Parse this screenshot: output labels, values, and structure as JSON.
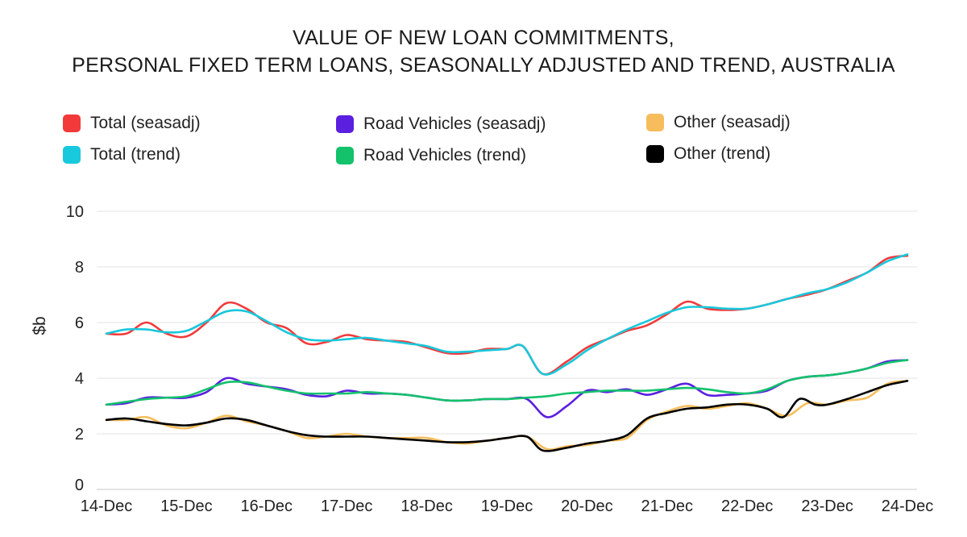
{
  "chart_data": {
    "type": "line",
    "title_line1": "VALUE OF NEW LOAN COMMITMENTS,",
    "title_line2": "PERSONAL FIXED TERM LOANS, SEASONALLY ADJUSTED AND TREND, AUSTRALIA",
    "ylabel": "$b",
    "xlabel": "",
    "ylim": [
      0,
      10
    ],
    "yticks": [
      0,
      2,
      4,
      6,
      8,
      10
    ],
    "xticks": [
      "14-Dec",
      "15-Dec",
      "16-Dec",
      "17-Dec",
      "18-Dec",
      "19-Dec",
      "20-Dec",
      "21-Dec",
      "22-Dec",
      "23-Dec",
      "24-Dec"
    ],
    "x_range": [
      2014.0,
      2024.0
    ],
    "grid": "horizontal",
    "legend_position": "top",
    "series": [
      {
        "name": "Total (seasadj)",
        "color": "#f23a3a",
        "points": [
          [
            2014.0,
            5.6
          ],
          [
            2014.25,
            5.6
          ],
          [
            2014.5,
            6.0
          ],
          [
            2014.75,
            5.6
          ],
          [
            2015.0,
            5.5
          ],
          [
            2015.25,
            6.0
          ],
          [
            2015.5,
            6.7
          ],
          [
            2015.75,
            6.5
          ],
          [
            2016.0,
            6.0
          ],
          [
            2016.25,
            5.8
          ],
          [
            2016.5,
            5.25
          ],
          [
            2016.75,
            5.3
          ],
          [
            2017.0,
            5.55
          ],
          [
            2017.25,
            5.4
          ],
          [
            2017.5,
            5.35
          ],
          [
            2017.75,
            5.3
          ],
          [
            2018.0,
            5.1
          ],
          [
            2018.25,
            4.9
          ],
          [
            2018.5,
            4.9
          ],
          [
            2018.75,
            5.05
          ],
          [
            2019.0,
            5.05
          ],
          [
            2019.2,
            5.15
          ],
          [
            2019.45,
            4.15
          ],
          [
            2019.75,
            4.6
          ],
          [
            2020.0,
            5.1
          ],
          [
            2020.25,
            5.4
          ],
          [
            2020.5,
            5.7
          ],
          [
            2020.75,
            5.9
          ],
          [
            2021.0,
            6.3
          ],
          [
            2021.25,
            6.75
          ],
          [
            2021.5,
            6.5
          ],
          [
            2021.75,
            6.45
          ],
          [
            2022.0,
            6.5
          ],
          [
            2022.25,
            6.65
          ],
          [
            2022.5,
            6.85
          ],
          [
            2022.75,
            7.0
          ],
          [
            2023.0,
            7.2
          ],
          [
            2023.25,
            7.5
          ],
          [
            2023.5,
            7.8
          ],
          [
            2023.75,
            8.3
          ],
          [
            2024.0,
            8.4
          ]
        ]
      },
      {
        "name": "Total (trend)",
        "color": "#18c8dc",
        "points": [
          [
            2014.0,
            5.6
          ],
          [
            2014.25,
            5.75
          ],
          [
            2014.5,
            5.75
          ],
          [
            2014.75,
            5.65
          ],
          [
            2015.0,
            5.7
          ],
          [
            2015.25,
            6.05
          ],
          [
            2015.5,
            6.4
          ],
          [
            2015.75,
            6.4
          ],
          [
            2016.0,
            6.05
          ],
          [
            2016.25,
            5.65
          ],
          [
            2016.5,
            5.4
          ],
          [
            2016.75,
            5.35
          ],
          [
            2017.0,
            5.4
          ],
          [
            2017.25,
            5.45
          ],
          [
            2017.5,
            5.35
          ],
          [
            2017.75,
            5.25
          ],
          [
            2018.0,
            5.15
          ],
          [
            2018.25,
            4.95
          ],
          [
            2018.5,
            4.95
          ],
          [
            2018.75,
            5.0
          ],
          [
            2019.0,
            5.05
          ],
          [
            2019.2,
            5.15
          ],
          [
            2019.45,
            4.15
          ],
          [
            2019.75,
            4.5
          ],
          [
            2020.0,
            5.0
          ],
          [
            2020.25,
            5.4
          ],
          [
            2020.5,
            5.75
          ],
          [
            2020.75,
            6.05
          ],
          [
            2021.0,
            6.35
          ],
          [
            2021.25,
            6.55
          ],
          [
            2021.5,
            6.55
          ],
          [
            2021.75,
            6.5
          ],
          [
            2022.0,
            6.5
          ],
          [
            2022.25,
            6.65
          ],
          [
            2022.5,
            6.85
          ],
          [
            2022.75,
            7.05
          ],
          [
            2023.0,
            7.2
          ],
          [
            2023.25,
            7.45
          ],
          [
            2023.5,
            7.8
          ],
          [
            2023.75,
            8.2
          ],
          [
            2024.0,
            8.45
          ]
        ]
      },
      {
        "name": "Road Vehicles (seasadj)",
        "color": "#5b1fe0",
        "points": [
          [
            2014.0,
            3.05
          ],
          [
            2014.25,
            3.1
          ],
          [
            2014.5,
            3.3
          ],
          [
            2014.75,
            3.3
          ],
          [
            2015.0,
            3.3
          ],
          [
            2015.25,
            3.5
          ],
          [
            2015.5,
            4.0
          ],
          [
            2015.75,
            3.8
          ],
          [
            2016.0,
            3.7
          ],
          [
            2016.25,
            3.6
          ],
          [
            2016.5,
            3.4
          ],
          [
            2016.75,
            3.35
          ],
          [
            2017.0,
            3.55
          ],
          [
            2017.25,
            3.45
          ],
          [
            2017.5,
            3.45
          ],
          [
            2017.75,
            3.4
          ],
          [
            2018.0,
            3.3
          ],
          [
            2018.25,
            3.2
          ],
          [
            2018.5,
            3.2
          ],
          [
            2018.75,
            3.25
          ],
          [
            2019.0,
            3.25
          ],
          [
            2019.25,
            3.25
          ],
          [
            2019.5,
            2.6
          ],
          [
            2019.75,
            3.0
          ],
          [
            2020.0,
            3.55
          ],
          [
            2020.25,
            3.5
          ],
          [
            2020.5,
            3.6
          ],
          [
            2020.75,
            3.4
          ],
          [
            2021.0,
            3.6
          ],
          [
            2021.25,
            3.8
          ],
          [
            2021.5,
            3.4
          ],
          [
            2021.75,
            3.4
          ],
          [
            2022.0,
            3.45
          ],
          [
            2022.25,
            3.55
          ],
          [
            2022.5,
            3.9
          ],
          [
            2022.75,
            4.05
          ],
          [
            2023.0,
            4.1
          ],
          [
            2023.25,
            4.2
          ],
          [
            2023.5,
            4.35
          ],
          [
            2023.75,
            4.6
          ],
          [
            2024.0,
            4.65
          ]
        ]
      },
      {
        "name": "Road Vehicles (trend)",
        "color": "#13c26b",
        "points": [
          [
            2014.0,
            3.05
          ],
          [
            2014.25,
            3.15
          ],
          [
            2014.5,
            3.25
          ],
          [
            2014.75,
            3.3
          ],
          [
            2015.0,
            3.35
          ],
          [
            2015.25,
            3.6
          ],
          [
            2015.5,
            3.85
          ],
          [
            2015.75,
            3.85
          ],
          [
            2016.0,
            3.7
          ],
          [
            2016.25,
            3.55
          ],
          [
            2016.5,
            3.45
          ],
          [
            2016.75,
            3.45
          ],
          [
            2017.0,
            3.45
          ],
          [
            2017.25,
            3.5
          ],
          [
            2017.5,
            3.45
          ],
          [
            2017.75,
            3.4
          ],
          [
            2018.0,
            3.3
          ],
          [
            2018.25,
            3.2
          ],
          [
            2018.5,
            3.2
          ],
          [
            2018.75,
            3.25
          ],
          [
            2019.0,
            3.25
          ],
          [
            2019.25,
            3.3
          ],
          [
            2019.5,
            3.35
          ],
          [
            2019.75,
            3.45
          ],
          [
            2020.0,
            3.5
          ],
          [
            2020.25,
            3.55
          ],
          [
            2020.5,
            3.55
          ],
          [
            2020.75,
            3.55
          ],
          [
            2021.0,
            3.6
          ],
          [
            2021.25,
            3.65
          ],
          [
            2021.5,
            3.6
          ],
          [
            2021.75,
            3.5
          ],
          [
            2022.0,
            3.45
          ],
          [
            2022.25,
            3.6
          ],
          [
            2022.5,
            3.9
          ],
          [
            2022.75,
            4.05
          ],
          [
            2023.0,
            4.1
          ],
          [
            2023.25,
            4.2
          ],
          [
            2023.5,
            4.35
          ],
          [
            2023.75,
            4.55
          ],
          [
            2024.0,
            4.65
          ]
        ]
      },
      {
        "name": "Other (seasadj)",
        "color": "#f7bd5c",
        "points": [
          [
            2014.0,
            2.5
          ],
          [
            2014.25,
            2.5
          ],
          [
            2014.5,
            2.6
          ],
          [
            2014.75,
            2.3
          ],
          [
            2015.0,
            2.2
          ],
          [
            2015.25,
            2.4
          ],
          [
            2015.5,
            2.65
          ],
          [
            2015.75,
            2.45
          ],
          [
            2016.0,
            2.3
          ],
          [
            2016.25,
            2.1
          ],
          [
            2016.5,
            1.85
          ],
          [
            2016.75,
            1.9
          ],
          [
            2017.0,
            2.0
          ],
          [
            2017.25,
            1.9
          ],
          [
            2017.5,
            1.85
          ],
          [
            2017.75,
            1.85
          ],
          [
            2018.0,
            1.85
          ],
          [
            2018.25,
            1.7
          ],
          [
            2018.5,
            1.65
          ],
          [
            2018.75,
            1.75
          ],
          [
            2019.0,
            1.85
          ],
          [
            2019.25,
            1.9
          ],
          [
            2019.5,
            1.45
          ],
          [
            2019.75,
            1.55
          ],
          [
            2020.0,
            1.6
          ],
          [
            2020.25,
            1.75
          ],
          [
            2020.5,
            1.85
          ],
          [
            2020.75,
            2.5
          ],
          [
            2021.0,
            2.8
          ],
          [
            2021.25,
            3.0
          ],
          [
            2021.5,
            2.9
          ],
          [
            2021.75,
            3.0
          ],
          [
            2022.0,
            3.1
          ],
          [
            2022.25,
            2.9
          ],
          [
            2022.5,
            2.65
          ],
          [
            2022.75,
            3.1
          ],
          [
            2023.0,
            3.05
          ],
          [
            2023.25,
            3.2
          ],
          [
            2023.5,
            3.3
          ],
          [
            2023.75,
            3.8
          ],
          [
            2024.0,
            3.9
          ]
        ]
      },
      {
        "name": "Other (trend)",
        "color": "#000000",
        "points": [
          [
            2014.0,
            2.5
          ],
          [
            2014.25,
            2.55
          ],
          [
            2014.5,
            2.45
          ],
          [
            2014.75,
            2.35
          ],
          [
            2015.0,
            2.3
          ],
          [
            2015.25,
            2.4
          ],
          [
            2015.5,
            2.55
          ],
          [
            2015.75,
            2.5
          ],
          [
            2016.0,
            2.3
          ],
          [
            2016.25,
            2.1
          ],
          [
            2016.5,
            1.95
          ],
          [
            2016.75,
            1.9
          ],
          [
            2017.0,
            1.9
          ],
          [
            2017.25,
            1.9
          ],
          [
            2017.5,
            1.85
          ],
          [
            2017.75,
            1.8
          ],
          [
            2018.0,
            1.75
          ],
          [
            2018.25,
            1.7
          ],
          [
            2018.5,
            1.7
          ],
          [
            2018.75,
            1.75
          ],
          [
            2019.0,
            1.85
          ],
          [
            2019.25,
            1.9
          ],
          [
            2019.45,
            1.4
          ],
          [
            2019.75,
            1.5
          ],
          [
            2020.0,
            1.65
          ],
          [
            2020.25,
            1.75
          ],
          [
            2020.5,
            1.95
          ],
          [
            2020.75,
            2.55
          ],
          [
            2021.0,
            2.75
          ],
          [
            2021.25,
            2.9
          ],
          [
            2021.5,
            2.95
          ],
          [
            2021.75,
            3.05
          ],
          [
            2022.0,
            3.05
          ],
          [
            2022.25,
            2.9
          ],
          [
            2022.45,
            2.6
          ],
          [
            2022.65,
            3.25
          ],
          [
            2022.85,
            3.05
          ],
          [
            2023.0,
            3.05
          ],
          [
            2023.25,
            3.25
          ],
          [
            2023.5,
            3.5
          ],
          [
            2023.75,
            3.75
          ],
          [
            2024.0,
            3.9
          ]
        ]
      }
    ]
  }
}
